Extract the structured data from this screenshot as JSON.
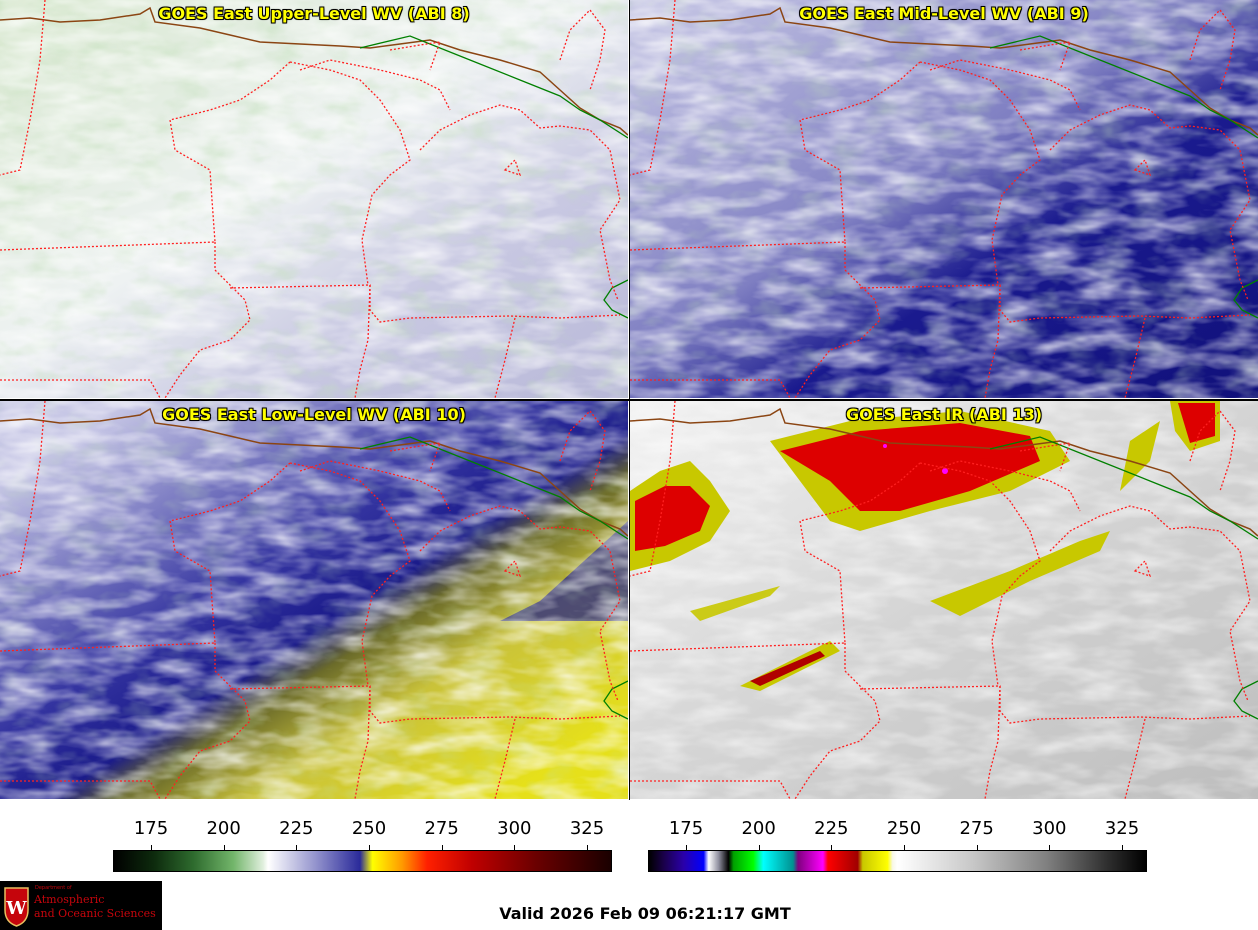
{
  "panels": [
    {
      "title": "GOES East Upper-Level WV (ABI 8)",
      "palette": "wv-upper"
    },
    {
      "title": "GOES East Mid-Level WV (ABI 9)",
      "palette": "wv-mid"
    },
    {
      "title": "GOES East Low-Level WV (ABI 10)",
      "palette": "wv-low"
    },
    {
      "title": "GOES East IR (ABI 13)",
      "palette": "ir"
    }
  ],
  "colorbars": {
    "wv": {
      "ticks": [
        "175",
        "200",
        "225",
        "250",
        "275",
        "300",
        "325"
      ]
    },
    "ir": {
      "ticks": [
        "175",
        "200",
        "225",
        "250",
        "275",
        "300",
        "325"
      ]
    }
  },
  "logo": {
    "dept": "Department of",
    "line1": "Atmospheric",
    "line2": "and Oceanic Sciences",
    "icon": "uw-crest-icon"
  },
  "valid_time": "Valid 2026 Feb 09 06:21:17 GMT",
  "colors": {
    "title_text": "#ffff00",
    "state_border": "#ff2020",
    "country_border": "#008000",
    "coast": "#8b4513"
  }
}
